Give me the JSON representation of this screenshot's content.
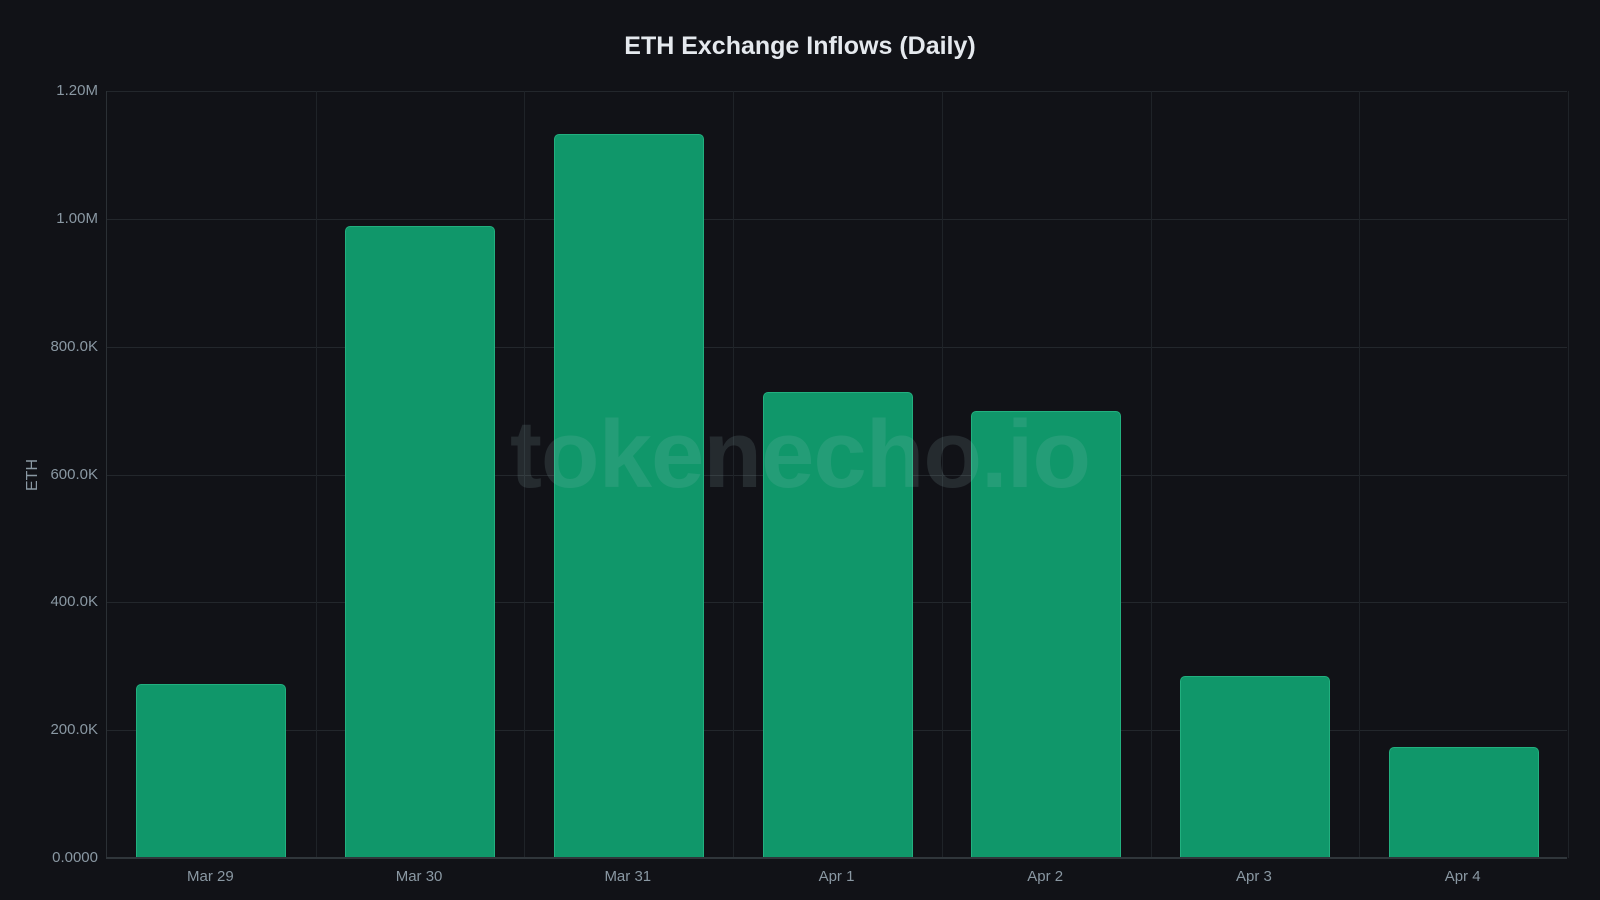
{
  "chart_data": {
    "type": "bar",
    "title": "ETH Exchange Inflows (Daily)",
    "xlabel": "",
    "ylabel": "ETH",
    "categories": [
      "Mar 29",
      "Mar 30",
      "Mar 31",
      "Apr 1",
      "Apr 2",
      "Apr 3",
      "Apr 4"
    ],
    "values": [
      272000,
      989000,
      1132000,
      729000,
      699000,
      285000,
      173000
    ],
    "ylim": [
      0,
      1200000
    ],
    "yticks": [
      0,
      200000,
      400000,
      600000,
      800000,
      1000000,
      1200000
    ],
    "ytick_labels": [
      "0.0000",
      "200.0K",
      "400.0K",
      "600.0K",
      "800.0K",
      "1.00M",
      "1.20M"
    ],
    "grid": true,
    "legend": null,
    "bar_color": "#10976a",
    "background": "#111217",
    "watermark": "tokenecho.io"
  },
  "title": "ETH Exchange Inflows (Daily)",
  "ylabel": "ETH",
  "watermark": "tokenecho.io",
  "yticks": [
    "0.0000",
    "200.0K",
    "400.0K",
    "600.0K",
    "800.0K",
    "1.00M",
    "1.20M"
  ],
  "xticks": [
    "Mar 29",
    "Mar 30",
    "Mar 31",
    "Apr 1",
    "Apr 2",
    "Apr 3",
    "Apr 4"
  ]
}
